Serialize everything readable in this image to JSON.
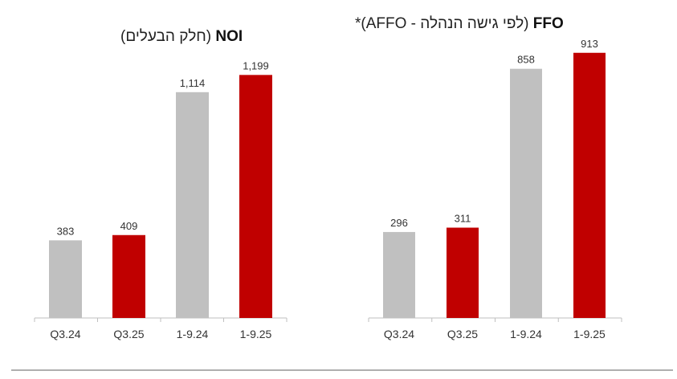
{
  "colors": {
    "grey": "#c0c0c0",
    "red": "#c00000",
    "axis": "#bfbfbf",
    "footer_line": "#7f7f7f"
  },
  "chart_data": [
    {
      "type": "bar",
      "title_bold": "NOI",
      "title_rest": "(חלק הבעלים)",
      "categories": [
        "Q3.24",
        "Q3.25",
        "1-9.24",
        "1-9.25"
      ],
      "values": [
        383,
        409,
        1114,
        1199
      ],
      "value_labels": [
        "383",
        "409",
        "1,114",
        "1,199"
      ],
      "bar_colors": [
        "grey",
        "red",
        "grey",
        "red"
      ],
      "ylim": [
        0,
        1240
      ],
      "grid": false,
      "legend": "none"
    },
    {
      "type": "bar",
      "title_bold": "FFO",
      "title_rest": "(לפי גישה הנהלה - AFFO)*",
      "categories": [
        "Q3.24",
        "Q3.25",
        "1-9.24",
        "1-9.25"
      ],
      "values": [
        296,
        311,
        858,
        913
      ],
      "value_labels": [
        "296",
        "311",
        "858",
        "913"
      ],
      "bar_colors": [
        "grey",
        "red",
        "grey",
        "red"
      ],
      "ylim": [
        0,
        940
      ],
      "grid": false,
      "legend": "none"
    }
  ]
}
